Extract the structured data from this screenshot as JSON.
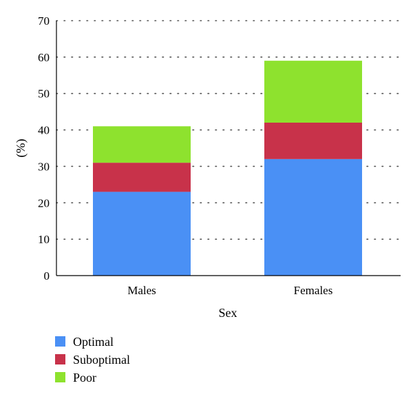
{
  "chart_data": {
    "type": "bar",
    "stacked": true,
    "categories": [
      "Males",
      "Females"
    ],
    "series": [
      {
        "name": "Optimal",
        "color": "#4a90f5",
        "values": [
          23,
          32
        ]
      },
      {
        "name": "Suboptimal",
        "color": "#c8324a",
        "values": [
          8,
          10
        ]
      },
      {
        "name": "Poor",
        "color": "#8ee22e",
        "values": [
          10,
          17
        ]
      }
    ],
    "title": "",
    "xlabel": "Sex",
    "ylabel": "(%)",
    "ylim": [
      0,
      70
    ],
    "yticks": [
      0,
      10,
      20,
      30,
      40,
      50,
      60,
      70
    ],
    "grid": "dotted horizontal",
    "legend": "bottom-left"
  }
}
